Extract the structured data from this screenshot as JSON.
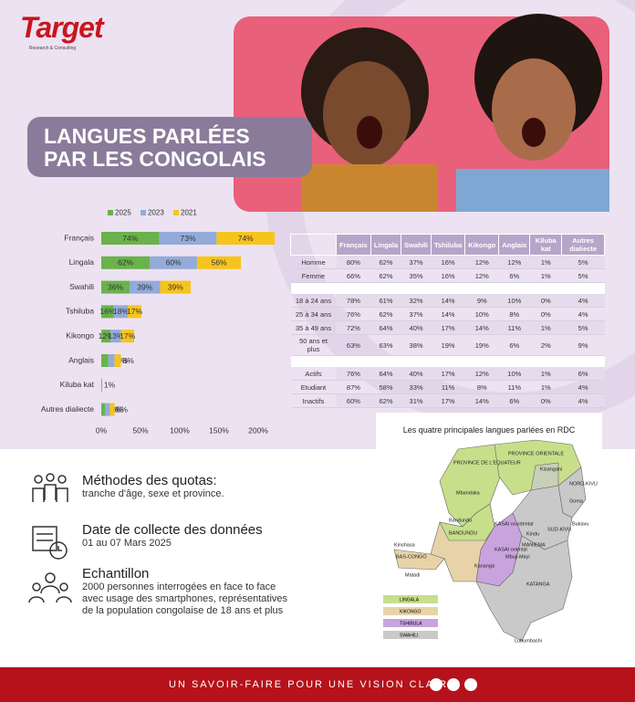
{
  "header": {
    "logo": "Target",
    "logo_sub": "Research & Consulting",
    "title_lines": [
      "LANGUES PARLÉES",
      "PAR LES CONGOLAIS"
    ]
  },
  "chart_data": {
    "type": "bar",
    "orientation": "horizontal",
    "stacked": true,
    "categories": [
      "Français",
      "Lingala",
      "Swahili",
      "Tshiluba",
      "Kikongo",
      "Anglais",
      "Kiluba kat",
      "Autres dialiecte"
    ],
    "series": [
      {
        "name": "2025",
        "color": "#6ab24c",
        "values": [
          74,
          62,
          36,
          16,
          12,
          9,
          1,
          5
        ],
        "value_labels": [
          "74%",
          "62%",
          "36%",
          "16%",
          "12%",
          "9%",
          "1%",
          "5%"
        ]
      },
      {
        "name": "2023",
        "color": "#93abd9",
        "values": [
          73,
          60,
          39,
          18,
          13,
          8,
          null,
          6
        ],
        "value_labels": [
          "73%",
          "60%",
          "39%",
          "18%",
          "13%",
          "8%",
          null,
          "6%"
        ]
      },
      {
        "name": "2021",
        "color": "#f7c41d",
        "values": [
          74,
          56,
          39,
          17,
          17,
          8,
          null,
          6
        ],
        "value_labels": [
          "74%",
          "56%",
          "39%",
          "17%",
          "17%",
          "8%",
          null,
          "6%"
        ]
      }
    ],
    "xlim": [
      0,
      200
    ],
    "xticks": [
      {
        "value": 0,
        "label": "0%"
      },
      {
        "value": 50,
        "label": "50%"
      },
      {
        "value": 100,
        "label": "100%"
      },
      {
        "value": 150,
        "label": "150%"
      },
      {
        "value": 200,
        "label": "200%"
      }
    ]
  },
  "table": {
    "columns": [
      "Français",
      "Lingala",
      "Swahili",
      "Tshiluba",
      "Kikongo",
      "Anglais",
      "Kiluba kat",
      "Autres dialiecte"
    ],
    "groups": [
      {
        "rows": [
          {
            "label": "Homme",
            "cells": [
              "80%",
              "62%",
              "37%",
              "16%",
              "12%",
              "12%",
              "1%",
              "5%"
            ]
          },
          {
            "label": "Femme",
            "cells": [
              "66%",
              "62%",
              "35%",
              "16%",
              "12%",
              "6%",
              "1%",
              "5%"
            ]
          }
        ]
      },
      {
        "rows": [
          {
            "label": "18 à 24 ans",
            "cells": [
              "78%",
              "61%",
              "32%",
              "14%",
              "9%",
              "10%",
              "0%",
              "4%"
            ]
          },
          {
            "label": "25 à 34 ans",
            "cells": [
              "76%",
              "62%",
              "37%",
              "14%",
              "10%",
              "8%",
              "0%",
              "4%"
            ]
          },
          {
            "label": "35 à 49 ans",
            "cells": [
              "72%",
              "64%",
              "40%",
              "17%",
              "14%",
              "11%",
              "1%",
              "5%"
            ]
          },
          {
            "label": "50 ans et plus",
            "cells": [
              "63%",
              "63%",
              "38%",
              "19%",
              "19%",
              "6%",
              "2%",
              "9%"
            ]
          }
        ]
      },
      {
        "rows": [
          {
            "label": "Actifs",
            "cells": [
              "76%",
              "64%",
              "40%",
              "17%",
              "12%",
              "10%",
              "1%",
              "6%"
            ]
          },
          {
            "label": "Etudiant",
            "cells": [
              "87%",
              "58%",
              "33%",
              "11%",
              "8%",
              "11%",
              "1%",
              "4%"
            ]
          },
          {
            "label": "Inactifs",
            "cells": [
              "60%",
              "62%",
              "31%",
              "17%",
              "14%",
              "6%",
              "0%",
              "4%"
            ]
          }
        ]
      }
    ]
  },
  "map": {
    "title": "Les quatre principales langues parlées en RDC",
    "labels": [
      "PROVINCE DE L'EQUATEUR",
      "Mbandaka",
      "PROVINCE ORIENTALE",
      "Kisangani",
      "NORD-KIVU",
      "Goma",
      "Bukavu",
      "SUD-KIVU",
      "Kindu",
      "MANIEMA",
      "Bandundu",
      "BANDUNDU",
      "KASAI occidental",
      "KASAI oriental",
      "Kananga",
      "Mbuji-Mayi",
      "Kinshasa",
      "BAS-CONGO",
      "Matadi",
      "KATANGA",
      "Lubumbashi"
    ],
    "legend": [
      "LINGALA",
      "KIKONGO",
      "TSHIBULA",
      "SWAHILI"
    ]
  },
  "info": [
    {
      "title": "Méthodes des quotas:",
      "text": "tranche d'âge, sexe et province."
    },
    {
      "title": "Date de collecte des données",
      "text": "01 au 07  Mars  2025"
    },
    {
      "title": "Echantillon",
      "text": "2000 personnes interrogées en face to face avec usage des smartphones, représentatives de la population congolaise de 18 ans et plus"
    }
  ],
  "footer": {
    "tagline": "UN SAVOIR-FAIRE POUR UNE VISION CLAIRE"
  }
}
